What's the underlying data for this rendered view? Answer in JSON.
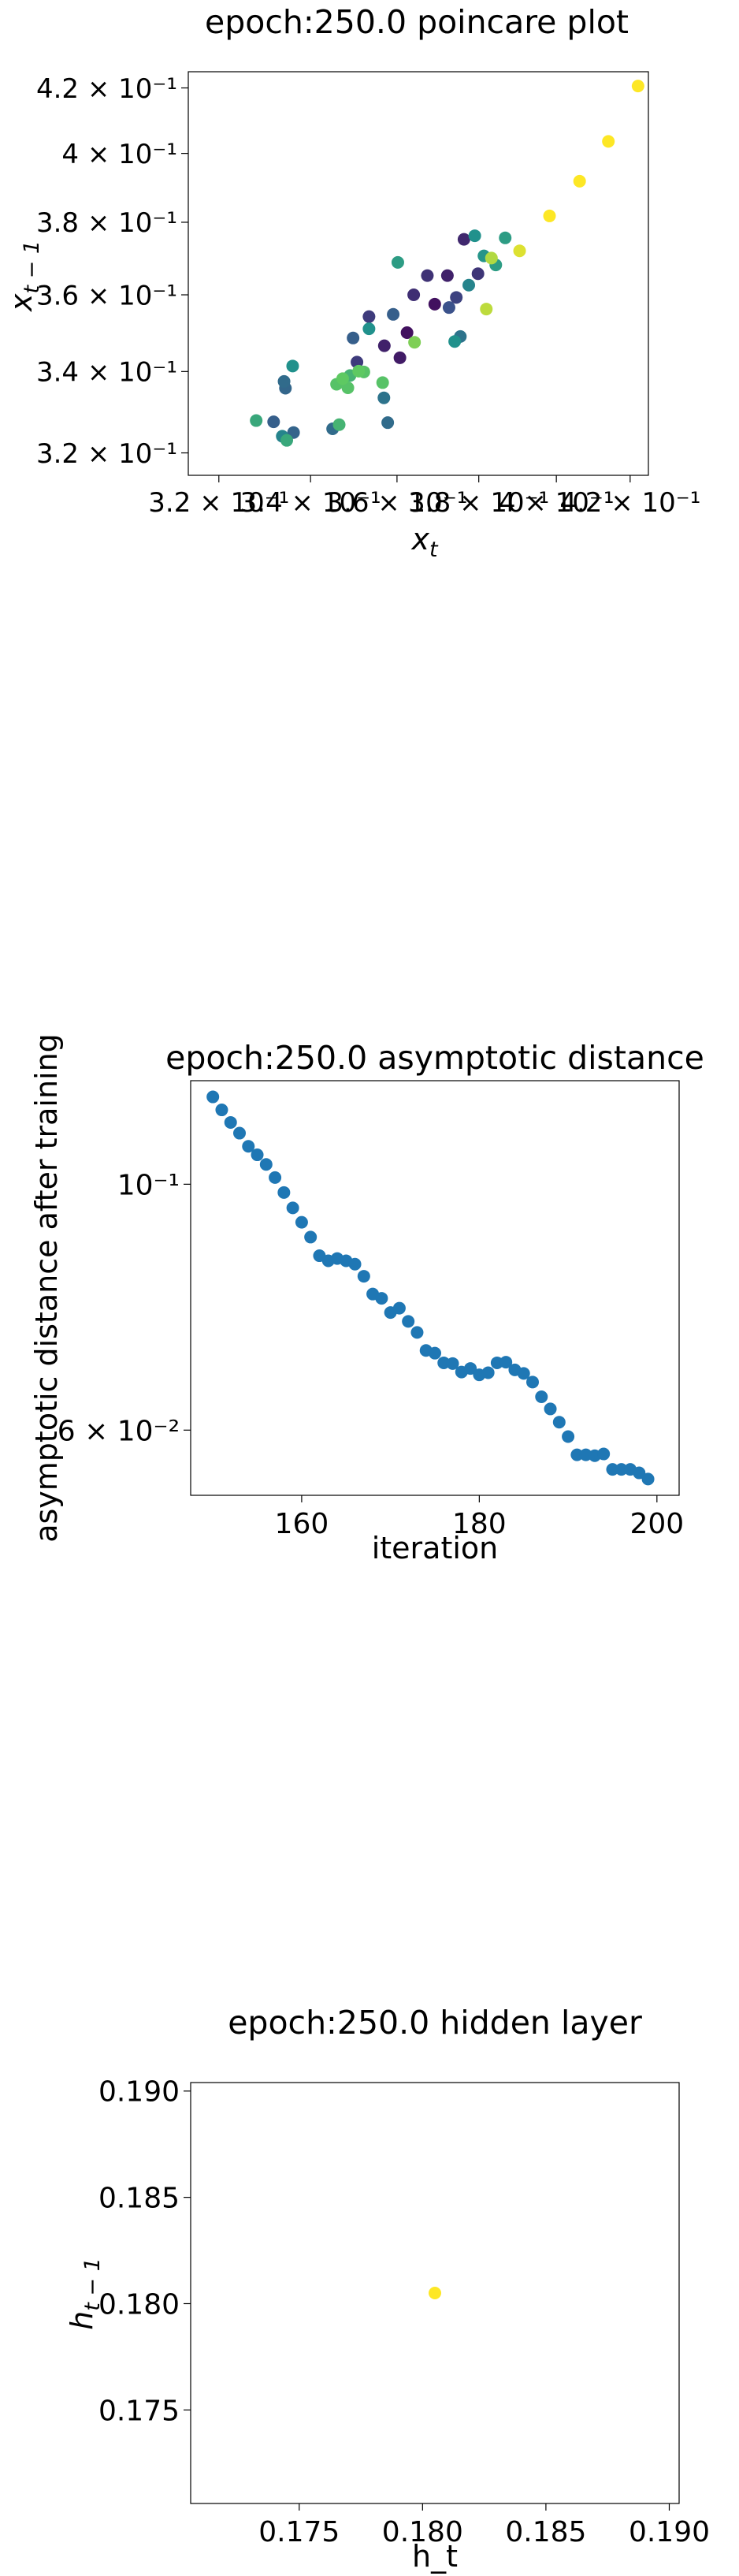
{
  "chart_data": [
    {
      "type": "scatter",
      "title": "epoch:250.0 poincare plot",
      "xlabel": "x_t",
      "ylabel": "x_{t-1}",
      "xscale": "log",
      "yscale": "log",
      "grid": false,
      "xlim": [
        0.3136,
        0.4251
      ],
      "ylim": [
        0.3147,
        0.4251
      ],
      "x_tick_values": [
        0.32,
        0.34,
        0.36,
        0.38,
        0.4,
        0.42
      ],
      "x_tick_labels": [
        "3.2 × 10⁻¹",
        "3.4 × 10⁻¹",
        "3.6 × 10⁻¹",
        "3.8 × 10⁻¹",
        "4 × 10⁻¹",
        "4.2 × 10⁻¹"
      ],
      "y_tick_values": [
        0.32,
        0.34,
        0.36,
        0.38,
        0.4,
        0.42
      ],
      "y_tick_labels": [
        "3.2 × 10⁻¹",
        "3.4 × 10⁻¹",
        "3.6 × 10⁻¹",
        "3.8 × 10⁻¹",
        "4 × 10⁻¹",
        "4.2 × 10⁻¹"
      ],
      "colormap": "viridis",
      "colors": [
        "#440154",
        "#3b528b",
        "#21918c",
        "#5ec962",
        "#fde725"
      ],
      "points": [
        {
          "x": 0.3624,
          "y": 0.35,
          "c": 0.05
        },
        {
          "x": 0.3691,
          "y": 0.3575,
          "c": 0.05
        },
        {
          "x": 0.3607,
          "y": 0.3435,
          "c": 0.08
        },
        {
          "x": 0.357,
          "y": 0.3466,
          "c": 0.1
        },
        {
          "x": 0.3763,
          "y": 0.3752,
          "c": 0.12
        },
        {
          "x": 0.3722,
          "y": 0.3652,
          "c": 0.1
        },
        {
          "x": 0.364,
          "y": 0.36,
          "c": 0.14
        },
        {
          "x": 0.3673,
          "y": 0.3652,
          "c": 0.15
        },
        {
          "x": 0.3506,
          "y": 0.3424,
          "c": 0.18
        },
        {
          "x": 0.3534,
          "y": 0.3542,
          "c": 0.18
        },
        {
          "x": 0.3798,
          "y": 0.3657,
          "c": 0.16
        },
        {
          "x": 0.3744,
          "y": 0.3593,
          "c": 0.2
        },
        {
          "x": 0.3726,
          "y": 0.3566,
          "c": 0.25
        },
        {
          "x": 0.3497,
          "y": 0.3486,
          "c": 0.3
        },
        {
          "x": 0.3591,
          "y": 0.3548,
          "c": 0.3
        },
        {
          "x": 0.3318,
          "y": 0.3275,
          "c": 0.3
        },
        {
          "x": 0.3362,
          "y": 0.3249,
          "c": 0.32
        },
        {
          "x": 0.3344,
          "y": 0.3358,
          "c": 0.33
        },
        {
          "x": 0.3341,
          "y": 0.3375,
          "c": 0.35
        },
        {
          "x": 0.345,
          "y": 0.3258,
          "c": 0.35
        },
        {
          "x": 0.3578,
          "y": 0.3273,
          "c": 0.35
        },
        {
          "x": 0.3569,
          "y": 0.3334,
          "c": 0.38
        },
        {
          "x": 0.3754,
          "y": 0.349,
          "c": 0.38
        },
        {
          "x": 0.3775,
          "y": 0.3626,
          "c": 0.45
        },
        {
          "x": 0.3337,
          "y": 0.324,
          "c": 0.45
        },
        {
          "x": 0.336,
          "y": 0.3414,
          "c": 0.5
        },
        {
          "x": 0.3534,
          "y": 0.351,
          "c": 0.5
        },
        {
          "x": 0.374,
          "y": 0.3477,
          "c": 0.5
        },
        {
          "x": 0.379,
          "y": 0.3762,
          "c": 0.5
        },
        {
          "x": 0.3813,
          "y": 0.3706,
          "c": 0.52
        },
        {
          "x": 0.3602,
          "y": 0.3688,
          "c": 0.55
        },
        {
          "x": 0.3867,
          "y": 0.3756,
          "c": 0.55
        },
        {
          "x": 0.3843,
          "y": 0.3681,
          "c": 0.55
        },
        {
          "x": 0.328,
          "y": 0.3278,
          "c": 0.6
        },
        {
          "x": 0.3347,
          "y": 0.323,
          "c": 0.6
        },
        {
          "x": 0.3465,
          "y": 0.3268,
          "c": 0.65
        },
        {
          "x": 0.349,
          "y": 0.339,
          "c": 0.65
        },
        {
          "x": 0.3522,
          "y": 0.3399,
          "c": 0.72
        },
        {
          "x": 0.3459,
          "y": 0.3368,
          "c": 0.72
        },
        {
          "x": 0.3485,
          "y": 0.3359,
          "c": 0.72
        },
        {
          "x": 0.3566,
          "y": 0.3372,
          "c": 0.72
        },
        {
          "x": 0.351,
          "y": 0.3401,
          "c": 0.75
        },
        {
          "x": 0.3473,
          "y": 0.3382,
          "c": 0.75
        },
        {
          "x": 0.3642,
          "y": 0.3475,
          "c": 0.8
        },
        {
          "x": 0.3832,
          "y": 0.37,
          "c": 0.88
        },
        {
          "x": 0.3819,
          "y": 0.3562,
          "c": 0.9
        },
        {
          "x": 0.3904,
          "y": 0.372,
          "c": 0.95
        },
        {
          "x": 0.3982,
          "y": 0.3818,
          "c": 1.0
        },
        {
          "x": 0.4062,
          "y": 0.3918,
          "c": 1.0
        },
        {
          "x": 0.414,
          "y": 0.4036,
          "c": 1.0
        },
        {
          "x": 0.4222,
          "y": 0.4206,
          "c": 1.0
        }
      ]
    },
    {
      "type": "scatter",
      "title": "epoch:250.0 asymptotic distance",
      "xlabel": "iteration",
      "ylabel": "asymptotic distance after training",
      "yscale": "log",
      "grid": false,
      "xlim": [
        147.5,
        202.5
      ],
      "ylim": [
        0.0524,
        0.124
      ],
      "x_tick_values": [
        160,
        180,
        200
      ],
      "x_tick_labels": [
        "160",
        "180",
        "200"
      ],
      "y_tick_values": [
        0.1,
        0.06
      ],
      "y_tick_labels": [
        "10⁻¹",
        "6 × 10⁻²"
      ],
      "color": "#1f77b4",
      "series": [
        {
          "x": [
            150,
            151,
            152,
            153,
            154,
            155,
            156,
            157,
            158,
            159,
            160,
            161,
            162,
            163,
            164,
            165,
            166,
            167,
            168,
            169,
            170,
            171,
            172,
            173,
            174,
            175,
            176,
            177,
            178,
            179,
            180,
            181,
            182,
            183,
            184,
            185,
            186,
            187,
            188,
            189,
            190,
            191,
            192,
            193,
            194,
            195,
            196,
            197,
            198,
            199
          ],
          "y": [
            0.1199,
            0.1167,
            0.1137,
            0.1112,
            0.1082,
            0.1063,
            0.1042,
            0.1014,
            0.0983,
            0.0952,
            0.0924,
            0.0896,
            0.0862,
            0.0853,
            0.0857,
            0.0853,
            0.0847,
            0.0826,
            0.0796,
            0.0789,
            0.0766,
            0.0773,
            0.0752,
            0.0735,
            0.0708,
            0.0704,
            0.069,
            0.0689,
            0.0677,
            0.0682,
            0.0673,
            0.0676,
            0.069,
            0.0691,
            0.068,
            0.0675,
            0.0663,
            0.0643,
            0.0627,
            0.061,
            0.0592,
            0.057,
            0.057,
            0.0569,
            0.0571,
            0.0553,
            0.0553,
            0.0553,
            0.0549,
            0.0542
          ]
        }
      ]
    },
    {
      "type": "scatter",
      "title": "epoch:250.0 hidden layer",
      "xlabel": "h_t",
      "ylabel": "h_{t-1}",
      "grid": false,
      "xlim": [
        0.1706,
        0.1904
      ],
      "ylim": [
        0.1706,
        0.1904
      ],
      "x_tick_values": [
        0.175,
        0.18,
        0.185,
        0.19
      ],
      "x_tick_labels": [
        "0.175",
        "0.180",
        "0.185",
        "0.190"
      ],
      "y_tick_values": [
        0.175,
        0.18,
        0.185,
        0.19
      ],
      "y_tick_labels": [
        "0.175",
        "0.180",
        "0.185",
        "0.190"
      ],
      "color": "#fde725",
      "points": [
        {
          "x": 0.1805,
          "y": 0.1805
        }
      ]
    }
  ]
}
